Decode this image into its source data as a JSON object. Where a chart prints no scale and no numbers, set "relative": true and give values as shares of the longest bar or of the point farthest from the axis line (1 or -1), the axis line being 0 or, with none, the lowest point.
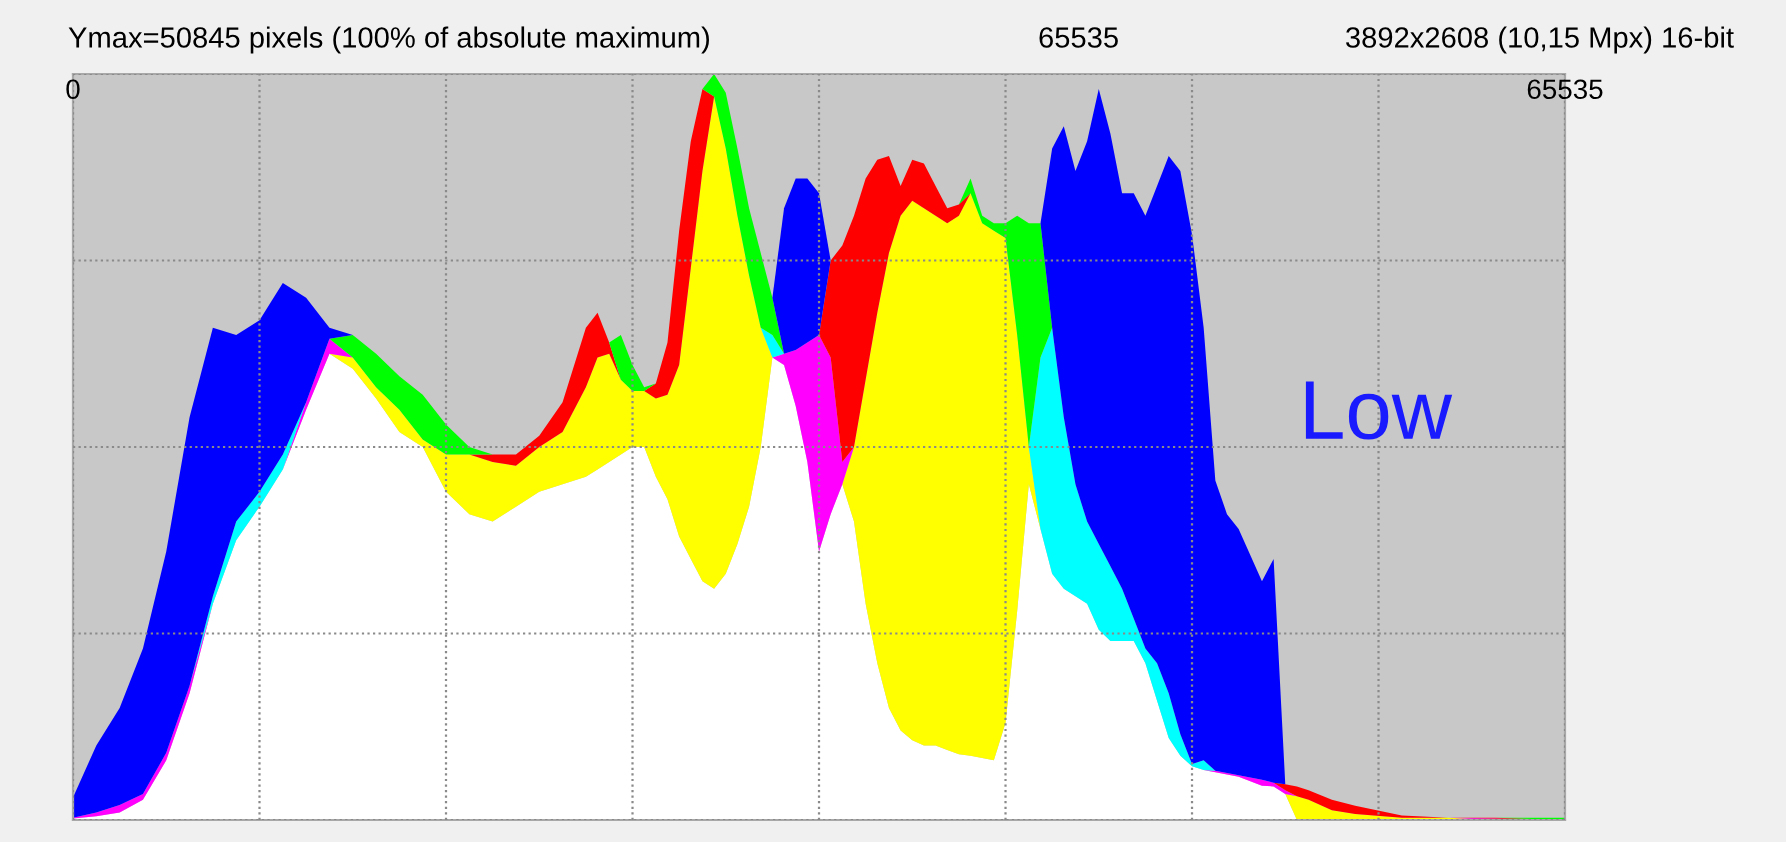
{
  "chart_data": {
    "type": "area",
    "stacked": true,
    "relative": true,
    "grid": true,
    "title": "Ymax=50845 pixels (100% of absolute maximum)",
    "subtitle": "3892x2608 (10,15 Mpx) 16-bit",
    "annotations": [
      "65535",
      "Low"
    ],
    "xlim": [
      0,
      65535
    ],
    "xticks": [
      {
        "value": 0,
        "label": "0"
      },
      {
        "value": 8192,
        "label": null
      },
      {
        "value": 16384,
        "label": null
      },
      {
        "value": 24576,
        "label": null
      },
      {
        "value": 32768,
        "label": null
      },
      {
        "value": 40960,
        "label": null
      },
      {
        "value": 49152,
        "label": null
      },
      {
        "value": 57344,
        "label": null
      },
      {
        "value": 65535,
        "label": "65535"
      }
    ],
    "x": [
      0,
      1024,
      2048,
      3072,
      4096,
      5120,
      6144,
      7168,
      8192,
      9216,
      10240,
      11264,
      12288,
      13312,
      14336,
      15360,
      16384,
      17408,
      18432,
      19456,
      20480,
      21504,
      22528,
      23040,
      23552,
      24064,
      24576,
      25088,
      25600,
      26112,
      26624,
      27136,
      27648,
      28160,
      28672,
      29184,
      29696,
      30208,
      30720,
      31232,
      31744,
      32256,
      32768,
      33280,
      33792,
      34304,
      34816,
      35328,
      35840,
      36352,
      36864,
      37376,
      37888,
      38400,
      38912,
      39424,
      39936,
      40448,
      40960,
      41472,
      41984,
      42496,
      43008,
      43520,
      44032,
      44544,
      45056,
      45568,
      46080,
      46592,
      47104,
      47616,
      48128,
      48640,
      49152,
      49664,
      50176,
      50688,
      51200,
      52224,
      52736,
      53248,
      53760,
      54272,
      55296,
      56320,
      58368,
      60416,
      62464,
      65535
    ],
    "series": [
      {
        "color": "#ffffff",
        "values": [
          0.002,
          0.005,
          0.01,
          0.027,
          0.08,
          0.17,
          0.29,
          0.375,
          0.42,
          0.47,
          0.55,
          0.625,
          0.605,
          0.565,
          0.52,
          0.5,
          0.44,
          0.41,
          0.4,
          0.42,
          0.44,
          0.45,
          0.46,
          0.47,
          0.48,
          0.49,
          0.5,
          0.5,
          0.46,
          0.43,
          0.38,
          0.35,
          0.32,
          0.31,
          0.33,
          0.37,
          0.42,
          0.5,
          0.62,
          0.61,
          0.555,
          0.48,
          0.36,
          0.41,
          0.45,
          0.4,
          0.29,
          0.21,
          0.15,
          0.12,
          0.107,
          0.1,
          0.1,
          0.094,
          0.088,
          0.086,
          0.083,
          0.08,
          0.13,
          0.28,
          0.45,
          0.39,
          0.33,
          0.31,
          0.3,
          0.29,
          0.255,
          0.24,
          0.24,
          0.24,
          0.21,
          0.16,
          0.11,
          0.086,
          0.072,
          0.067,
          0.064,
          0.061,
          0.058,
          0.046,
          0.045,
          0.035,
          0,
          null,
          null,
          null,
          null,
          null,
          null,
          null
        ]
      },
      {
        "color": "#ffff00",
        "values": [
          null,
          null,
          null,
          null,
          null,
          null,
          null,
          null,
          null,
          null,
          null,
          0,
          0.015,
          0.015,
          0.03,
          0.01,
          0.05,
          0.08,
          0.08,
          0.055,
          0.06,
          0.07,
          0.12,
          0.15,
          0.145,
          0.1,
          0.075,
          0.075,
          0.105,
          0.14,
          0.23,
          0.39,
          0.55,
          0.66,
          0.57,
          0.44,
          0.31,
          0.16,
          0,
          null,
          null,
          null,
          null,
          null,
          0,
          0.1,
          0.3,
          0.47,
          0.61,
          0.69,
          0.723,
          0.72,
          0.71,
          0.706,
          0.722,
          0.754,
          0.717,
          0.71,
          0.65,
          0.37,
          0.05,
          0,
          null,
          null,
          null,
          null,
          null,
          null,
          null,
          null,
          null,
          null,
          null,
          null,
          null,
          null,
          null,
          null,
          null,
          null,
          null,
          0,
          0.032,
          0.027,
          0.013,
          0.008,
          0.003,
          0.003,
          0,
          null
        ]
      },
      {
        "color": "#ff00ff",
        "values": [
          0.001,
          0.005,
          0.01,
          0.008,
          0.01,
          0.01,
          0,
          null,
          null,
          0,
          0.01,
          0.02,
          0,
          null,
          null,
          null,
          null,
          null,
          null,
          null,
          null,
          null,
          null,
          null,
          null,
          null,
          null,
          null,
          null,
          null,
          null,
          null,
          null,
          null,
          null,
          null,
          null,
          null,
          0,
          0.015,
          0.075,
          0.16,
          0.29,
          0.21,
          0.03,
          0,
          null,
          null,
          null,
          null,
          null,
          null,
          null,
          null,
          null,
          null,
          null,
          null,
          null,
          null,
          null,
          null,
          null,
          null,
          null,
          null,
          null,
          null,
          null,
          null,
          null,
          null,
          null,
          null,
          null,
          0,
          0.002,
          0.002,
          0.002,
          0.008,
          0.005,
          0.005,
          0,
          null,
          null,
          null,
          null,
          0,
          0.002,
          0
        ]
      },
      {
        "color": "#00ffff",
        "values": [
          null,
          null,
          null,
          null,
          null,
          0,
          0.01,
          0.025,
          0.02,
          0.02,
          0,
          null,
          null,
          null,
          null,
          null,
          null,
          null,
          null,
          null,
          null,
          null,
          null,
          null,
          null,
          null,
          null,
          null,
          null,
          null,
          null,
          null,
          null,
          null,
          null,
          null,
          null,
          0,
          0.03,
          0,
          null,
          null,
          null,
          null,
          null,
          null,
          null,
          null,
          null,
          null,
          null,
          null,
          null,
          null,
          null,
          null,
          null,
          null,
          null,
          null,
          0,
          0.23,
          0.33,
          0.23,
          0.15,
          0.11,
          0.115,
          0.1,
          0.07,
          0.03,
          0.02,
          0.05,
          0.06,
          0.029,
          0.003,
          0.013,
          0,
          null,
          null,
          null,
          null,
          null,
          null,
          null,
          null,
          null,
          null,
          null,
          null,
          null
        ]
      },
      {
        "color": "#ff0000",
        "values": [
          null,
          null,
          null,
          null,
          null,
          null,
          null,
          null,
          null,
          null,
          null,
          null,
          null,
          null,
          null,
          null,
          null,
          0,
          0.01,
          0.015,
          0.015,
          0.04,
          0.08,
          0.06,
          0.015,
          0,
          null,
          0,
          0.02,
          0.07,
          0.18,
          0.17,
          0.11,
          0,
          null,
          null,
          null,
          null,
          null,
          null,
          null,
          null,
          0,
          0.13,
          0.29,
          0.31,
          0.27,
          0.205,
          0.13,
          0.04,
          0.055,
          0.06,
          0.04,
          0.02,
          0.015,
          0,
          null,
          null,
          null,
          null,
          null,
          null,
          null,
          null,
          null,
          null,
          null,
          null,
          null,
          null,
          null,
          null,
          null,
          null,
          null,
          null,
          null,
          null,
          null,
          null,
          0,
          0.008,
          0.013,
          0.013,
          0.014,
          0.011,
          0.003,
          0,
          0.001,
          0
        ]
      },
      {
        "color": "#00ff00",
        "values": [
          null,
          null,
          null,
          null,
          null,
          null,
          null,
          null,
          null,
          null,
          null,
          0,
          0.03,
          0.045,
          0.045,
          0.06,
          0.04,
          0.01,
          0,
          null,
          null,
          null,
          null,
          null,
          0,
          0.06,
          0.035,
          0.005,
          0,
          null,
          null,
          null,
          0,
          0.03,
          0.075,
          0.09,
          0.09,
          0.1,
          0.05,
          0,
          null,
          null,
          null,
          null,
          null,
          null,
          null,
          null,
          null,
          null,
          null,
          null,
          null,
          null,
          0,
          0.02,
          0.01,
          0.01,
          0.02,
          0.16,
          0.3,
          0.18,
          0,
          null,
          null,
          null,
          null,
          null,
          null,
          null,
          null,
          null,
          null,
          null,
          null,
          null,
          null,
          null,
          null,
          null,
          null,
          null,
          null,
          null,
          null,
          null,
          null,
          null,
          0,
          0.003
        ]
      },
      {
        "color": "#0000ff",
        "values": [
          0.027,
          0.09,
          0.13,
          0.195,
          0.27,
          0.36,
          0.36,
          0.25,
          0.23,
          0.23,
          0.14,
          0.015,
          0,
          null,
          null,
          null,
          null,
          null,
          null,
          null,
          null,
          null,
          null,
          null,
          null,
          null,
          null,
          null,
          null,
          null,
          null,
          null,
          null,
          null,
          null,
          null,
          null,
          null,
          0,
          0.195,
          0.23,
          0.22,
          0.19,
          0,
          null,
          null,
          null,
          null,
          null,
          null,
          null,
          null,
          null,
          null,
          null,
          null,
          null,
          null,
          null,
          null,
          null,
          0,
          0.24,
          0.39,
          0.42,
          0.51,
          0.61,
          0.58,
          0.53,
          0.57,
          0.58,
          0.64,
          0.72,
          0.755,
          0.71,
          0.58,
          0.389,
          0.347,
          0.33,
          0.266,
          0.3,
          0,
          null,
          null,
          null,
          null,
          null,
          null,
          null,
          null
        ]
      }
    ]
  }
}
